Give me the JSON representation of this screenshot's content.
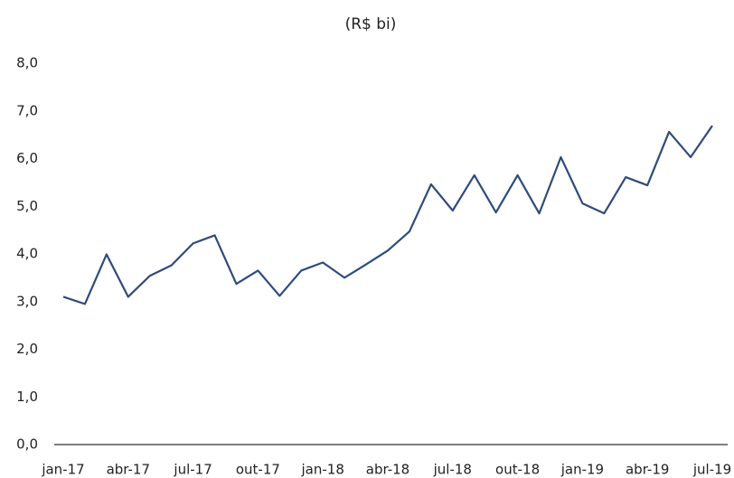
{
  "chart_data": {
    "type": "line",
    "title": "(R$ bi)",
    "categories": [
      "jan-17",
      null,
      null,
      "abr-17",
      null,
      null,
      "jul-17",
      null,
      null,
      "out-17",
      null,
      null,
      "jan-18",
      null,
      null,
      "abr-18",
      null,
      null,
      "jul-18",
      null,
      null,
      "out-18",
      null,
      null,
      "jan-19",
      null,
      null,
      "abr-19",
      null,
      null,
      "jul-19"
    ],
    "series": [
      {
        "name": "R$ bi",
        "color": "#2f4b7c",
        "values": [
          3.1,
          2.95,
          3.99,
          3.1,
          3.54,
          3.76,
          4.22,
          4.39,
          3.37,
          3.65,
          3.12,
          3.65,
          3.82,
          3.5,
          3.78,
          4.07,
          4.47,
          5.46,
          4.91,
          5.65,
          4.87,
          5.65,
          4.85,
          6.03,
          5.06,
          4.85,
          5.61,
          5.44,
          6.56,
          6.03,
          6.69
        ]
      }
    ],
    "ylim": [
      0,
      8
    ],
    "yticks": [
      {
        "value": 0,
        "label": "0,0"
      },
      {
        "value": 1,
        "label": "1,0"
      },
      {
        "value": 2,
        "label": "2,0"
      },
      {
        "value": 3,
        "label": "3,0"
      },
      {
        "value": 4,
        "label": "4,0"
      },
      {
        "value": 5,
        "label": "5,0"
      },
      {
        "value": 6,
        "label": "6,0"
      },
      {
        "value": 7,
        "label": "7,0"
      },
      {
        "value": 8,
        "label": "8,0"
      }
    ],
    "grid": false
  }
}
